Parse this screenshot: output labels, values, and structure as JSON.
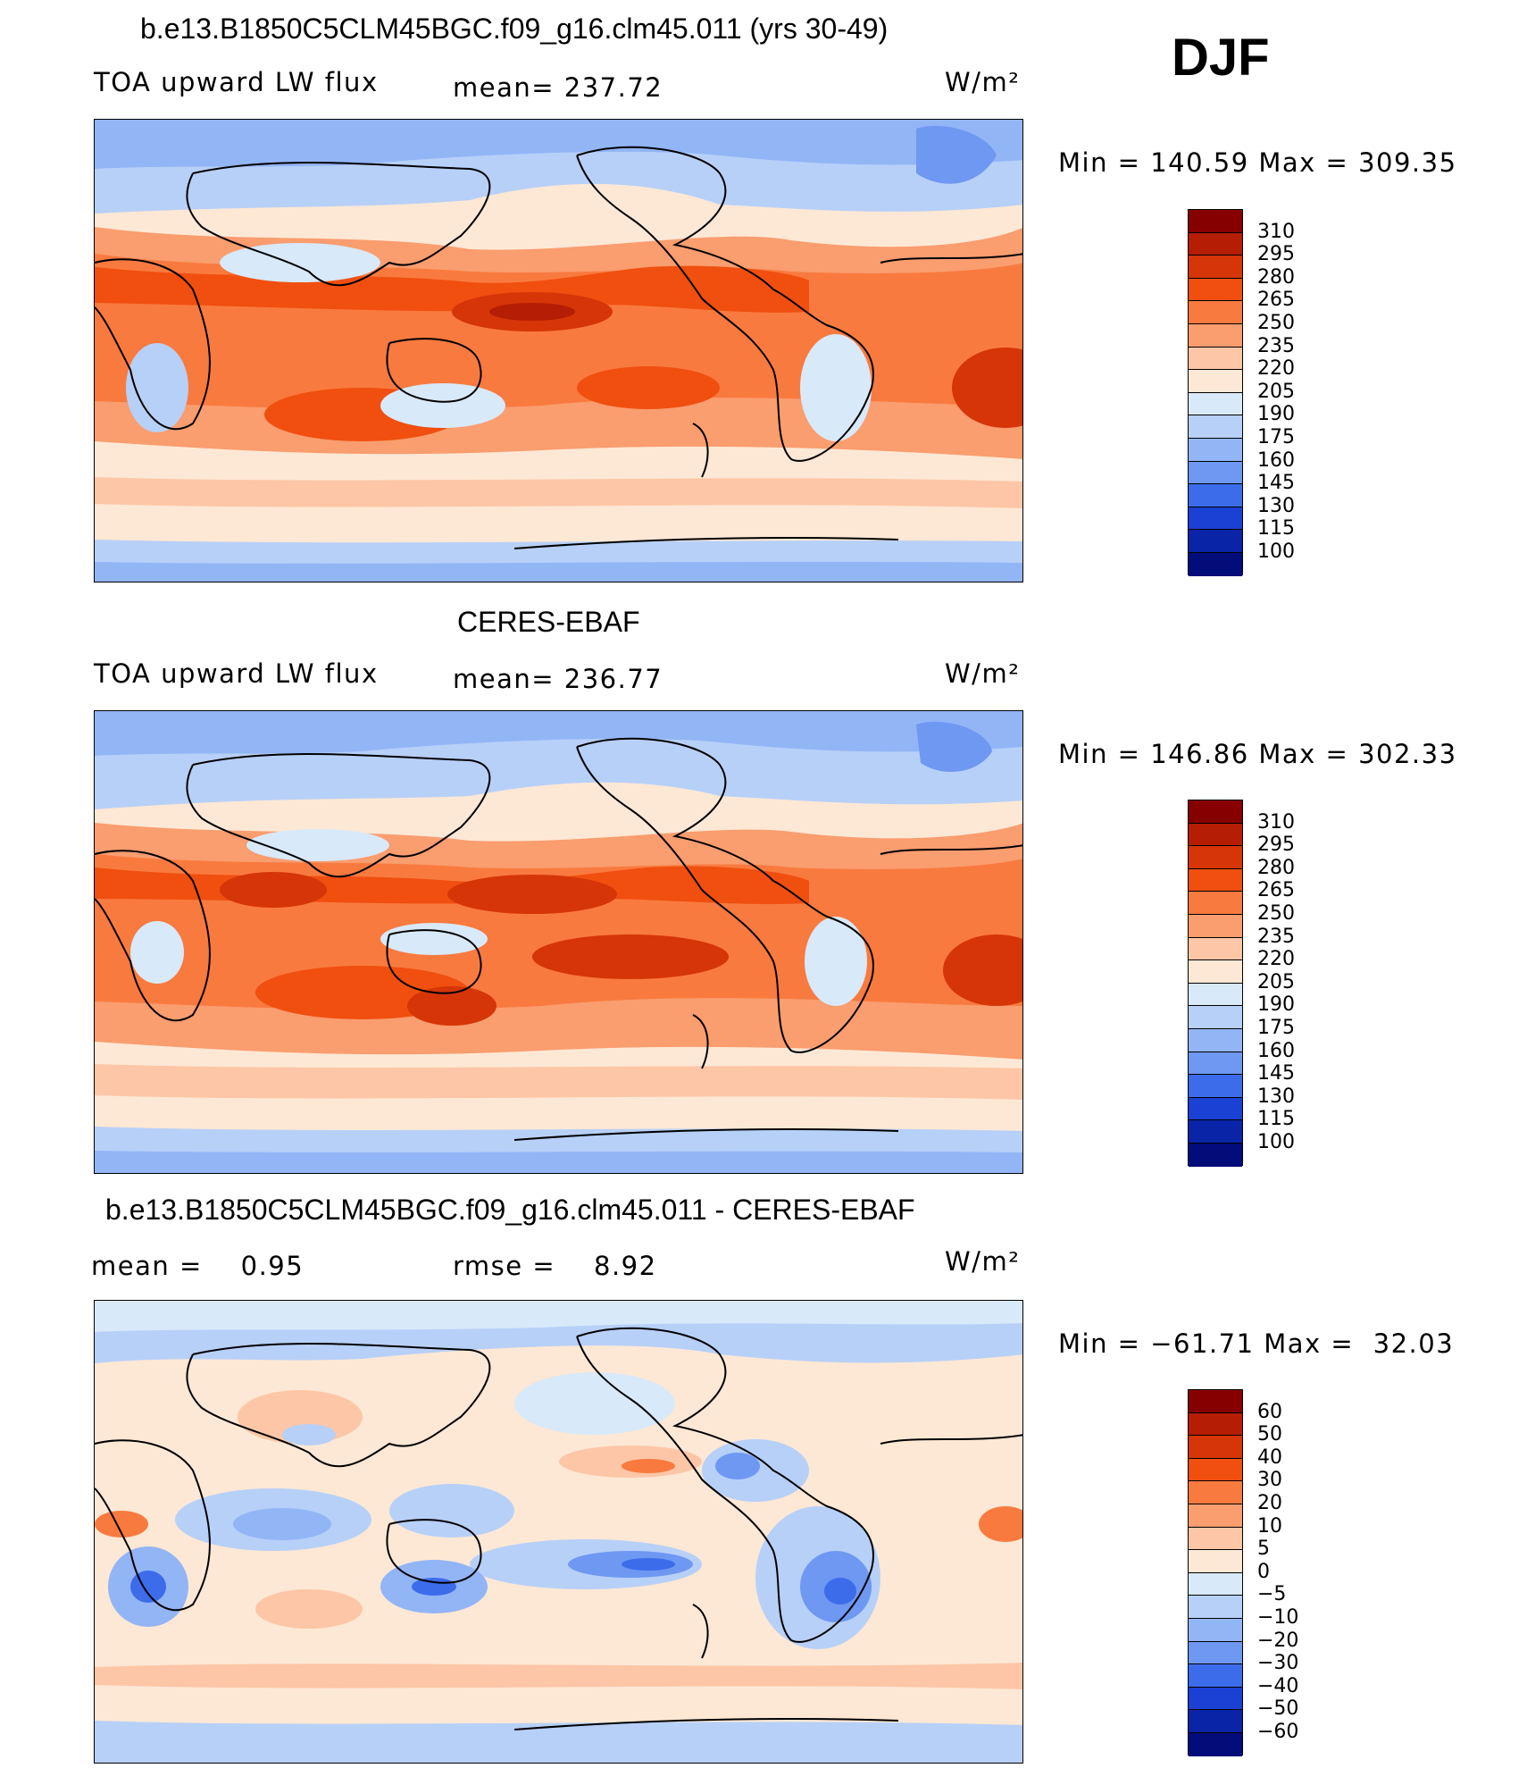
{
  "season": "DJF",
  "panels": [
    {
      "title": "b.e13.B1850C5CLM45BGC.f09_g16.clm45.011 (yrs 30-49)",
      "left_label": "TOA upward LW flux",
      "mid_label": "mean= 237.72",
      "units": "W/m²",
      "minmax": "Min = 140.59 Max = 309.35",
      "colorbar": {
        "labels": [
          "310",
          "295",
          "280",
          "265",
          "250",
          "235",
          "220",
          "205",
          "190",
          "175",
          "160",
          "145",
          "130",
          "115",
          "100"
        ],
        "colors": [
          "#870000",
          "#b51d04",
          "#d53507",
          "#f04f0f",
          "#f97a3f",
          "#fa9d6f",
          "#fdc6a6",
          "#fde8d5",
          "#d8e9fa",
          "#b7d0f8",
          "#92b5f6",
          "#6e98f1",
          "#3d6ceb",
          "#1b40d4",
          "#0924a7",
          "#020d7a"
        ]
      }
    },
    {
      "title": "CERES-EBAF",
      "left_label": "TOA upward LW flux",
      "mid_label": "mean= 236.77",
      "units": "W/m²",
      "minmax": "Min = 146.86 Max = 302.33",
      "colorbar": {
        "labels": [
          "310",
          "295",
          "280",
          "265",
          "250",
          "235",
          "220",
          "205",
          "190",
          "175",
          "160",
          "145",
          "130",
          "115",
          "100"
        ],
        "colors": [
          "#870000",
          "#b51d04",
          "#d53507",
          "#f04f0f",
          "#f97a3f",
          "#fa9d6f",
          "#fdc6a6",
          "#fde8d5",
          "#d8e9fa",
          "#b7d0f8",
          "#92b5f6",
          "#6e98f1",
          "#3d6ceb",
          "#1b40d4",
          "#0924a7",
          "#020d7a"
        ]
      }
    },
    {
      "title": "b.e13.B1850C5CLM45BGC.f09_g16.clm45.011 - CERES-EBAF",
      "left_label": "mean =    0.95",
      "mid_label": "rmse =    8.92",
      "units": "W/m²",
      "minmax": "Min = −61.71 Max =  32.03",
      "colorbar": {
        "labels": [
          "60",
          "50",
          "40",
          "30",
          "20",
          "10",
          "5",
          "0",
          "−5",
          "−10",
          "−20",
          "−30",
          "−40",
          "−50",
          "−60"
        ],
        "colors": [
          "#870000",
          "#b51d04",
          "#d53507",
          "#f04f0f",
          "#f97a3f",
          "#fa9d6f",
          "#fdc6a6",
          "#fde8d5",
          "#d8e9fa",
          "#b7d0f8",
          "#92b5f6",
          "#6e98f1",
          "#3d6ceb",
          "#1b40d4",
          "#0924a7",
          "#020d7a"
        ]
      }
    }
  ]
}
